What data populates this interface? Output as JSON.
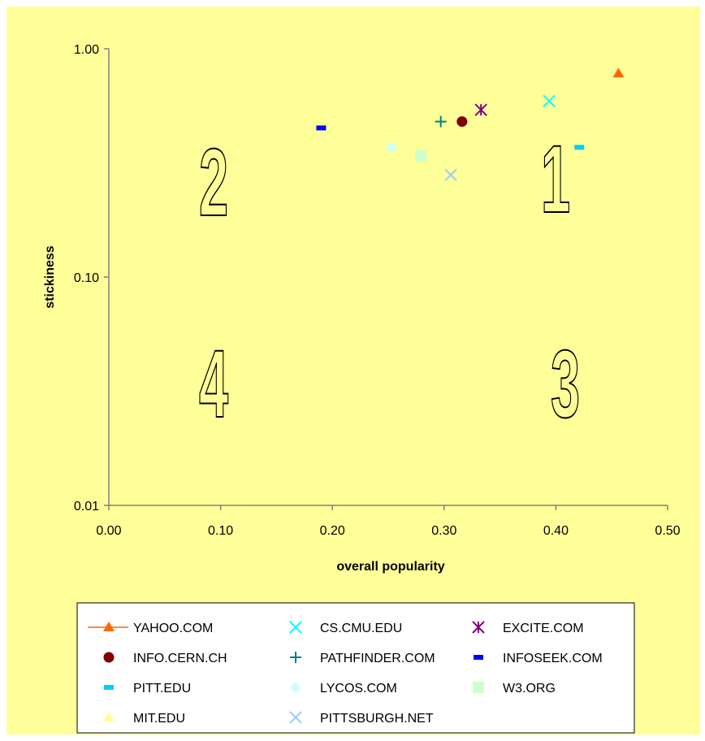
{
  "colors": {
    "background": "#ffff99",
    "plot_background": "#ffff99",
    "axis": "#808080"
  },
  "quadrant_labels": [
    "1",
    "2",
    "3",
    "4"
  ],
  "chart_data": {
    "type": "scatter",
    "title": "",
    "xlabel": "overall popularity",
    "ylabel": "stickiness",
    "xlim": [
      0,
      0.5
    ],
    "ylim": [
      0.01,
      1
    ],
    "y_scale": "log",
    "x_ticks": [
      "0.00",
      "0.10",
      "0.20",
      "0.30",
      "0.40",
      "0.50"
    ],
    "y_ticks": [
      "1.00",
      "0.10",
      "0.01"
    ],
    "grid": false,
    "legend_position": "bottom",
    "series": [
      {
        "name": "YAHOO.COM",
        "x": 0.456,
        "y": 0.78,
        "marker": "triangle",
        "color": "#ff6600"
      },
      {
        "name": "CS.CMU.EDU",
        "x": 0.394,
        "y": 0.59,
        "marker": "x",
        "color": "#00ffff"
      },
      {
        "name": "EXCITE.COM",
        "x": 0.333,
        "y": 0.54,
        "marker": "star",
        "color": "#800080"
      },
      {
        "name": "INFO.CERN.CH",
        "x": 0.316,
        "y": 0.48,
        "marker": "circle",
        "color": "#800000"
      },
      {
        "name": "PATHFINDER.COM",
        "x": 0.297,
        "y": 0.48,
        "marker": "plus",
        "color": "#008080"
      },
      {
        "name": "INFOSEEK.COM",
        "x": 0.19,
        "y": 0.45,
        "marker": "dash",
        "color": "#0000ff"
      },
      {
        "name": "PITT.EDU",
        "x": 0.421,
        "y": 0.37,
        "marker": "dash",
        "color": "#00ccff"
      },
      {
        "name": "LYCOS.COM",
        "x": 0.253,
        "y": 0.37,
        "marker": "diamond",
        "color": "#ccffff"
      },
      {
        "name": "W3.ORG",
        "x": 0.279,
        "y": 0.34,
        "marker": "square",
        "color": "#ccffcc"
      },
      {
        "name": "MIT.EDU",
        "x": null,
        "y": null,
        "marker": "triangle",
        "color": "#ffff99"
      },
      {
        "name": "PITTSBURGH.NET",
        "x": 0.306,
        "y": 0.28,
        "marker": "x",
        "color": "#99ccff"
      }
    ]
  }
}
